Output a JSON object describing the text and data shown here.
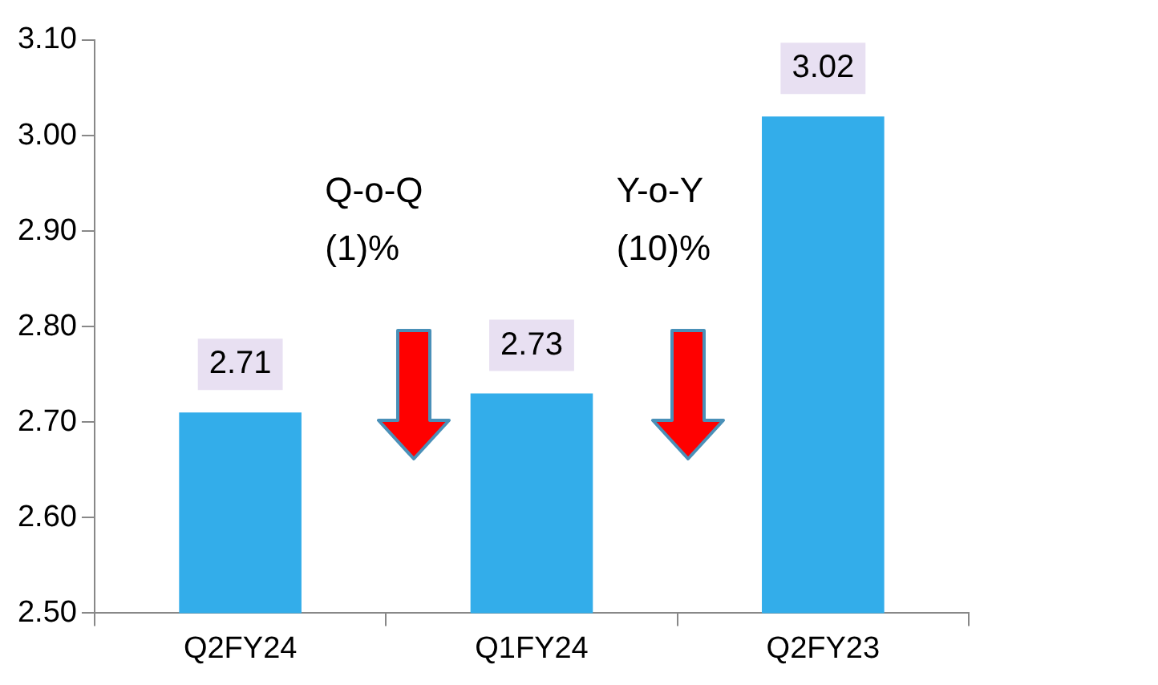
{
  "chart_data": {
    "type": "bar",
    "categories": [
      "Q2FY24",
      "Q1FY24",
      "Q2FY23"
    ],
    "values": [
      2.71,
      2.73,
      3.02
    ],
    "color": "#33adea",
    "data_labels": true,
    "ylim": [
      2.5,
      3.1
    ],
    "yticks": [
      {
        "value": 2.5,
        "label": "2.50"
      },
      {
        "value": 2.6,
        "label": "2.60"
      },
      {
        "value": 2.7,
        "label": "2.70"
      },
      {
        "value": 2.8,
        "label": "2.80"
      },
      {
        "value": 2.9,
        "label": "2.90"
      },
      {
        "value": 3.0,
        "label": "3.00"
      },
      {
        "value": 3.1,
        "label": "3.10"
      }
    ],
    "annotations": [
      "Q-o-Q\n(1)%",
      "Y-o-Y\n(10)%"
    ]
  }
}
